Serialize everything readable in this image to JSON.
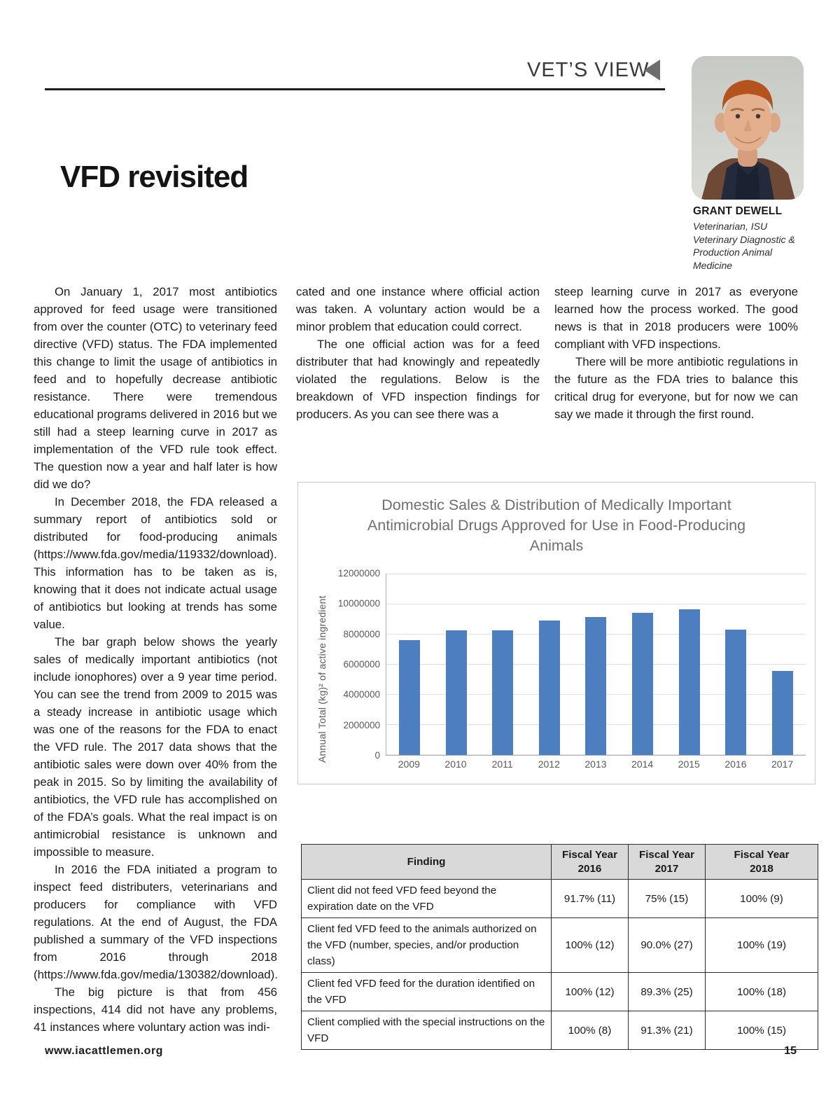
{
  "page": {
    "section_label": "VET’S VIEW",
    "title": "VFD revisited",
    "footer_website": "www.iacattlemen.org",
    "footer_page_number": "15"
  },
  "author": {
    "name": "GRANT DEWELL",
    "credentials": "Veterinarian, ISU Veterinary Diagnostic & Production Animal Medicine"
  },
  "article": {
    "col1": [
      "On January 1, 2017 most antibiotics approved for feed usage were transitioned from over the counter (OTC) to veterinary feed directive (VFD) status. The FDA implemented this change to limit the usage of antibiotics in feed and to hopefully decrease antibiotic resistance. There were tremendous educational programs delivered in 2016 but we still had a steep learning curve in 2017 as implementation of the VFD rule took effect. The question now a year and half later is how did we do?",
      "In December 2018, the FDA released a summary report of antibiotics sold or distributed for food-producing animals (https://www.fda.gov/media/119332/download). This information has to be taken as is, knowing that it does not indicate actual usage of antibiotics but looking at trends has some value.",
      "The bar graph below shows the yearly sales of medically important antibiotics (not include ionophores) over a 9 year time period. You can see the trend from 2009 to 2015 was a steady increase in antibiotic usage which was one of the reasons for the FDA to enact the VFD rule. The 2017 data shows that the antibiotic sales were down over 40% from the peak in 2015. So by limiting the availability of antibiotics, the VFD rule has accomplished on of the FDA’s goals. What the real impact is on antimicrobial resistance is unknown and impossible to measure.",
      "In 2016 the FDA initiated a program to inspect feed distributers, veterinarians and producers for compliance with VFD regulations. At the end of August, the FDA published a summary of the VFD inspections from 2016 through 2018 (https://www.fda.gov/media/130382/download).",
      "The big picture is that from 456 inspections, 414 did not have any problems, 41 instances where voluntary action was indi-"
    ],
    "col2": [
      "cated and one instance where official action was taken. A voluntary action would be a minor problem that education could correct.",
      "The one official action was for a feed distributer that had knowingly and repeatedly violated the regulations. Below is the breakdown of VFD inspection findings for producers. As you can see there was a"
    ],
    "col3": [
      "steep learning curve in 2017 as everyone learned how the process worked. The good news is that in 2018 producers were 100% compliant with VFD inspections.",
      "There will be more antibiotic regulations in the future as the FDA tries to balance this critical drug for everyone, but for now we can say we made it through the first round."
    ]
  },
  "chart_data": {
    "type": "bar",
    "title": "Domestic Sales & Distribution of Medically Important Antimicrobial Drugs Approved for Use in Food-Producing Animals",
    "xlabel": "",
    "ylabel": "Annual Total (kg)² of active ingredient",
    "categories": [
      "2009",
      "2010",
      "2011",
      "2012",
      "2013",
      "2014",
      "2015",
      "2016",
      "2017"
    ],
    "values": [
      7600000,
      8250000,
      8250000,
      8900000,
      9150000,
      9400000,
      9650000,
      8300000,
      5550000
    ],
    "ylim": [
      0,
      12000000
    ],
    "ytick_labels": [
      "12000000",
      "10000000",
      "8000000",
      "6000000",
      "4000000",
      "2000000",
      "0"
    ],
    "grid": "horizontal",
    "legend": "none",
    "bar_color": "#4d7ebf"
  },
  "table": {
    "headers": [
      {
        "line1": "Finding",
        "line2": ""
      },
      {
        "line1": "Fiscal Year",
        "line2": "2016"
      },
      {
        "line1": "Fiscal Year",
        "line2": "2017"
      },
      {
        "line1": "Fiscal Year",
        "line2": "2018"
      }
    ],
    "rows": [
      {
        "finding": "Client did not feed VFD feed beyond the expiration date on the VFD",
        "fy2016": "91.7% (11)",
        "fy2017": "75% (15)",
        "fy2018": "100% (9)"
      },
      {
        "finding": "Client fed VFD feed to the animals authorized on the VFD (number, species, and/or production class)",
        "fy2016": "100% (12)",
        "fy2017": "90.0% (27)",
        "fy2018": "100% (19)"
      },
      {
        "finding": "Client fed VFD feed for the duration identified on the VFD",
        "fy2016": "100% (12)",
        "fy2017": "89.3% (25)",
        "fy2018": "100% (18)"
      },
      {
        "finding": "Client complied with the special instructions on the VFD",
        "fy2016": "100% (8)",
        "fy2017": "91.3% (21)",
        "fy2018": "100% (15)"
      }
    ]
  },
  "colors": {
    "bar": "#4d7ebf",
    "chart_text": "#595959",
    "table_header_bg": "#d9d9d9"
  }
}
